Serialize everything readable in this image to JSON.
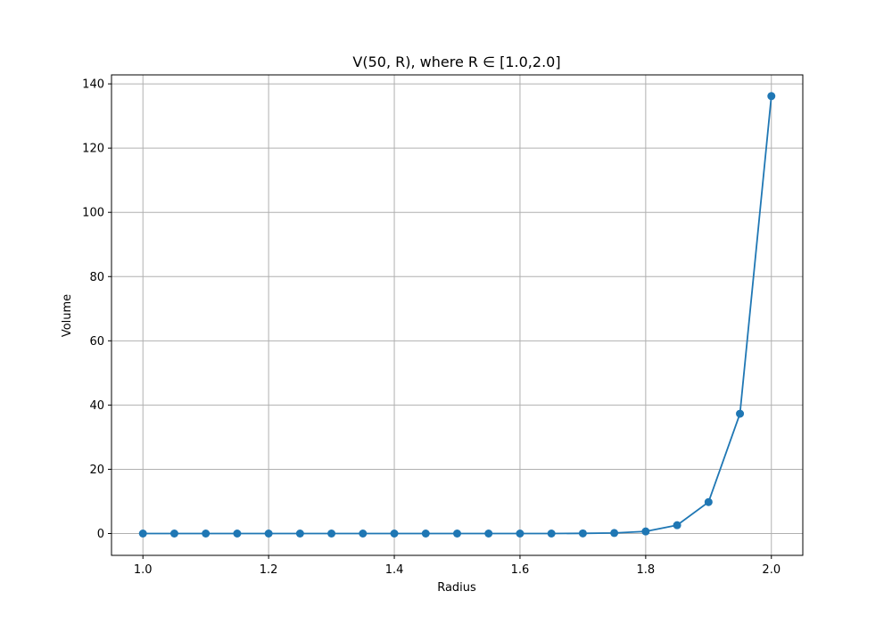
{
  "chart_data": {
    "type": "line",
    "title": "V(50, R), where R ∈ [1.0,2.0]",
    "xlabel": "Radius",
    "ylabel": "Volume",
    "xlim": [
      0.95,
      2.05
    ],
    "ylim": [
      -6.8,
      142.8
    ],
    "grid": true,
    "x_ticks": [
      "1.0",
      "1.2",
      "1.4",
      "1.6",
      "1.8",
      "2.0"
    ],
    "x_tick_values": [
      1.0,
      1.2,
      1.4,
      1.6,
      1.8,
      2.0
    ],
    "y_ticks": [
      "0",
      "20",
      "40",
      "60",
      "80",
      "100",
      "120",
      "140"
    ],
    "y_tick_values": [
      0,
      20,
      40,
      60,
      80,
      100,
      120,
      140
    ],
    "series": [
      {
        "color": "#1f77b4",
        "marker": "circle",
        "x": [
          1.0,
          1.05,
          1.1,
          1.15,
          1.2,
          1.25,
          1.3,
          1.35,
          1.4,
          1.45,
          1.5,
          1.55,
          1.6,
          1.65,
          1.7,
          1.75,
          1.8,
          1.85,
          1.9,
          1.95,
          2.0
        ],
        "y": [
          0.0,
          0.0,
          0.0,
          0.0,
          0.0,
          0.0,
          0.0,
          0.0,
          0.0,
          0.0,
          0.0,
          0.0,
          0.0,
          0.0,
          0.05,
          0.17,
          0.65,
          2.6,
          9.8,
          37.3,
          136.2
        ]
      }
    ]
  }
}
